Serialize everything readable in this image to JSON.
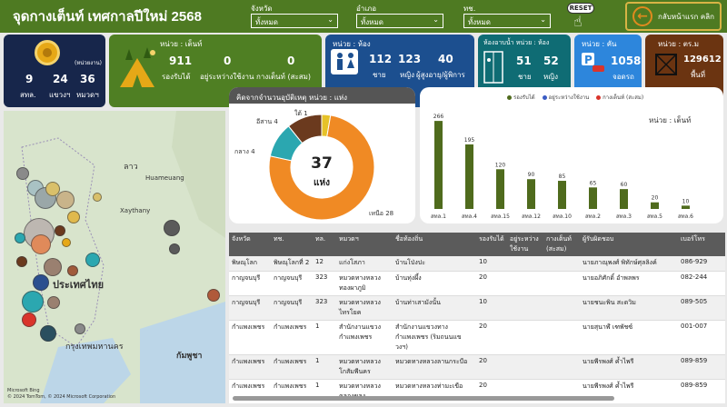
{
  "header": {
    "title": "จุดกางเต็นท์ เทศกาลปีใหม่ 2568",
    "filters": [
      {
        "label": "จังหวัด",
        "value": "ทั้งหมด"
      },
      {
        "label": "อำเภอ",
        "value": "ทั้งหมด"
      },
      {
        "label": "ทช.",
        "value": "ทั้งหมด"
      }
    ],
    "reset_label": "RESET",
    "back_label": "กลับหน้าแรก คลิก"
  },
  "kpi": {
    "units": {
      "unit1": "(หน่วยงาน)",
      "n1": "9",
      "l1": "สทล.",
      "n2": "24",
      "l2": "แขวงฯ",
      "n3": "36",
      "l3": "หมวดฯ"
    },
    "tents": {
      "unit": "หน่วย : เต็นท์",
      "n1": "911",
      "l1": "รองรับได้",
      "n2": "0",
      "l2": "อยู่ระหว่างใช้งาน",
      "n3": "0",
      "l3": "กางเต็นท์ (สะสม)"
    },
    "rooms": {
      "unit": "หน่วย : ห้อง",
      "n1": "112",
      "l1": "ชาย",
      "n2": "123",
      "l2": "หญิง",
      "n3": "40",
      "l3": "ผู้สูงอายุ/ผู้พิการ"
    },
    "showers": {
      "unit": "ห้องอาบน้ำ หน่วย : ห้อง",
      "n1": "51",
      "l1": "ชาย",
      "n2": "52",
      "l2": "หญิง"
    },
    "parking": {
      "unit": "หน่วย : คัน",
      "n1": "1058",
      "l1": "จอดรถ"
    },
    "area": {
      "unit": "หน่วย : ตร.ม",
      "n1": "129612",
      "l1": "พื้นที่"
    }
  },
  "map": {
    "labels": [
      "ลาว",
      "Huameuang",
      "Xaythany",
      "ประเทศไทย",
      "กรุงเทพมหานคร",
      "กัมพูชา"
    ],
    "credit": "© 2024 TomTom, © 2024 Microsoft Corporation",
    "brand": "Microsoft Bing"
  },
  "donut": {
    "title": "คิดจากจำนวนอุบัติเหตุ หน่วย : แห่ง",
    "center_value": "37",
    "center_label": "แห่ง",
    "slices": [
      {
        "label": "เหนือ 28",
        "value": 28,
        "color": "#f08a24"
      },
      {
        "label": "กลาง 4",
        "value": 4,
        "color": "#2ba7b0"
      },
      {
        "label": "อีสาน 4",
        "value": 4,
        "color": "#6b3a1e"
      },
      {
        "label": "ใต้ 1",
        "value": 1,
        "color": "#e6c229"
      }
    ]
  },
  "chart_data": {
    "type": "bar",
    "unit_label": "หน่วย : เต็นท์",
    "legend": [
      {
        "name": "รองรับได้",
        "color": "#4f6b1d"
      },
      {
        "name": "อยู่ระหว่างใช้งาน",
        "color": "#3b5cc4"
      },
      {
        "name": "กางเต็นท์ (สะสม)",
        "color": "#d9342b"
      }
    ],
    "categories": [
      "สทล.1",
      "สทล.4",
      "สทล.15",
      "สทล.12",
      "สทล.10",
      "สทล.2",
      "สทล.3",
      "สทล.5",
      "สทล.6"
    ],
    "series": [
      {
        "name": "รองรับได้",
        "values": [
          266,
          195,
          120,
          90,
          85,
          65,
          60,
          20,
          10
        ]
      }
    ],
    "ylim": [
      0,
      300
    ]
  },
  "table": {
    "columns": [
      "จังหวัด",
      "ทช.",
      "ทล.",
      "หมวดฯ",
      "ชื่อท้องถิ่น",
      "รองรับได้",
      "อยู่ระหว่างใช้งาน",
      "กางเต็นท์ (สะสม)",
      "ผู้รับผิดชอบ",
      "เบอร์โทร"
    ],
    "rows": [
      [
        "พิษณุโลก",
        "พิษณุโลกที่ 2",
        "12",
        "แก่งโสภา",
        "บ้านโป่งปะ",
        "10",
        "",
        "",
        "นายภาณุพงศ์ พิทักษ์ศุลลิงค์",
        "086-929"
      ],
      [
        "กาญจนบุรี",
        "กาญจนบุรี",
        "323",
        "หมวดทางหลวงทองผาภูมิ",
        "บ้านทุ่งผึ้ง",
        "20",
        "",
        "",
        "นายอภิศักดิ์ อำพลพร",
        "082-244"
      ],
      [
        "กาญจนบุรี",
        "กาญจนบุรี",
        "323",
        "หมวดทางหลวงไทรโยค",
        "บ้านท่าเสามังนั้น",
        "10",
        "",
        "",
        "นายชนะพิน สะดวิม",
        "089-505"
      ],
      [
        "กำแพงเพชร",
        "กำแพงเพชร",
        "1",
        "สำนักงานแขวงกำแพงเพชร",
        "สำนักงานแขวงทางกำแพงเพชร (ริมถนนแขวงฯ)",
        "20",
        "",
        "",
        "นายสุนาฬ์ เฑพัชซ์",
        "001-007"
      ],
      [
        "กำแพงเพชร",
        "กำแพงเพชร",
        "1",
        "หมวดทางหลวงโกสัมพีนคร",
        "หมวดทางหลวงลานกระบือ",
        "20",
        "",
        "",
        "นายพีรพงศ์ ค้ำไพรี",
        "089-859"
      ],
      [
        "กำแพงเพชร",
        "กำแพงเพชร",
        "1",
        "หมวดทางหลวงคลองขลุง",
        "หมวดทางหลวงท่ามะเขือ",
        "20",
        "",
        "",
        "นายพีรพงศ์ ค้ำไพรี",
        "089-859"
      ]
    ]
  }
}
